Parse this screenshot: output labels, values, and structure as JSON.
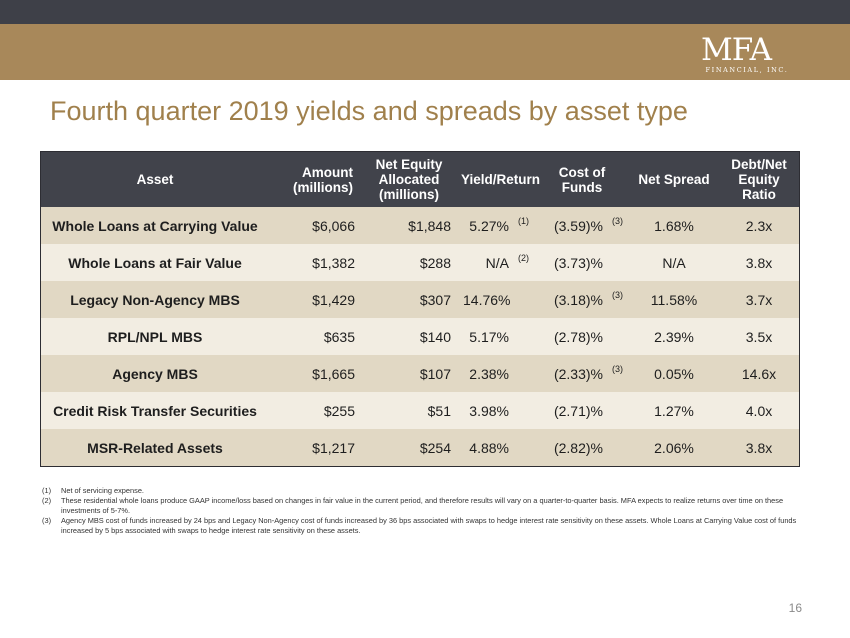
{
  "logo": {
    "mark": "MFA",
    "sub": "FINANCIAL, INC."
  },
  "title": "Fourth quarter 2019 yields and spreads by asset type",
  "table": {
    "headers": {
      "asset": "Asset",
      "amount": "Amount (millions)",
      "equity": "Net Equity Allocated (millions)",
      "yield": "Yield/Return",
      "cost": "Cost of Funds",
      "spread": "Net Spread",
      "ratio": "Debt/Net Equity Ratio"
    },
    "rows": [
      {
        "asset": "Whole Loans at Carrying Value",
        "amount": "$6,066",
        "equity": "$1,848",
        "yield": "5.27%",
        "yield_note": "(1)",
        "cost": "(3.59)%",
        "cost_note": "(3)",
        "spread": "1.68%",
        "ratio": "2.3x"
      },
      {
        "asset": "Whole Loans at Fair Value",
        "amount": "$1,382",
        "equity": "$288",
        "yield": "N/A",
        "yield_note": "(2)",
        "cost": "(3.73)%",
        "cost_note": "",
        "spread": "N/A",
        "ratio": "3.8x"
      },
      {
        "asset": "Legacy Non-Agency MBS",
        "amount": "$1,429",
        "equity": "$307",
        "yield": "14.76%",
        "yield_note": "",
        "cost": "(3.18)%",
        "cost_note": "(3)",
        "spread": "11.58%",
        "ratio": "3.7x"
      },
      {
        "asset": "RPL/NPL MBS",
        "amount": "$635",
        "equity": "$140",
        "yield": "5.17%",
        "yield_note": "",
        "cost": "(2.78)%",
        "cost_note": "",
        "spread": "2.39%",
        "ratio": "3.5x"
      },
      {
        "asset": "Agency MBS",
        "amount": "$1,665",
        "equity": "$107",
        "yield": "2.38%",
        "yield_note": "",
        "cost": "(2.33)%",
        "cost_note": "(3)",
        "spread": "0.05%",
        "ratio": "14.6x"
      },
      {
        "asset": "Credit Risk Transfer Securities",
        "amount": "$255",
        "equity": "$51",
        "yield": "3.98%",
        "yield_note": "",
        "cost": "(2.71)%",
        "cost_note": "",
        "spread": "1.27%",
        "ratio": "4.0x"
      },
      {
        "asset": "MSR-Related Assets",
        "amount": "$1,217",
        "equity": "$254",
        "yield": "4.88%",
        "yield_note": "",
        "cost": "(2.82)%",
        "cost_note": "",
        "spread": "2.06%",
        "ratio": "3.8x"
      }
    ]
  },
  "footnotes": [
    {
      "num": "(1)",
      "text": "Net of servicing expense."
    },
    {
      "num": "(2)",
      "text": "These residential whole loans produce GAAP income/loss based on changes in fair value in the current period, and therefore results will vary on a quarter-to-quarter basis. MFA expects to realize returns over time on these investments of 5-7%."
    },
    {
      "num": "(3)",
      "text": "Agency MBS cost of funds increased by 24 bps and Legacy Non-Agency cost of funds increased by 36 bps associated with swaps to hedge interest rate sensitivity on these assets.  Whole Loans at Carrying Value cost of funds increased by 5 bps associated with swaps to hedge interest rate sensitivity on these assets."
    }
  ],
  "page_number": "16"
}
